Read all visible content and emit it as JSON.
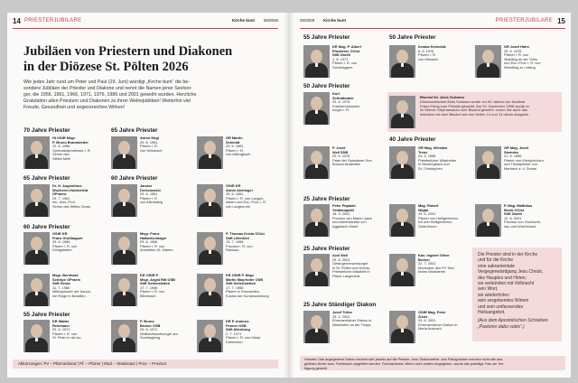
{
  "left": {
    "page_number": "14",
    "section": "PRIESTERJUBILARE",
    "paper": "Kirche bunt",
    "date": "26/2026",
    "headline_1": "Jubiläen von Priestern und Diakonen",
    "headline_2": "in der Diözese St. Pölten 2026",
    "lead_1": "Wie jedes Jahr rund um Peter und Paul (29. Juni) würdigt „Kirche bunt“ die be-",
    "lead_2": "sondere Jubiläen der Priester und Diakone und nennt die Namen jener Seelsor-",
    "lead_3": "ger, die 1956, 1961, 1966, 1971, 1976, 1986 und 2001 geweiht wurden. Herzliche",
    "lead_4": "Gratulation allen Priestern und Diakonen zu ihren Weihejubiläen! Weiterhin viel",
    "lead_5": "Freude, Gesundheit und segensreiches Wirken!",
    "abbreviations": "Abkürzungen: PV – Pfarrverband | Pf. – Pfarrer | Mod. – Moderator | Prov. – Provisor",
    "groups": {
      "g70": "70 Jahre Priester",
      "g65a": "65 Jahre Priester",
      "g65b": "65 Jahre Priester",
      "g60a": "60 Jahre Priester",
      "g60b": "60 Jahre Priester",
      "g55": "55 Jahre Priester"
    },
    "cards": {
      "c1": {
        "name": "Hl OStR Msgr.",
        "l2": "P. Bruno Brandstetter",
        "l3": "12. 6. 1956",
        "l4": "Gymnasialprofessor i. R.",
        "l5": "Senior des",
        "l6": "Stiftes Melk"
      },
      "c2": {
        "name": "Anton Högl",
        "l2": "29. 6. 1961",
        "l3": "Pfarrer i. R.",
        "l4": "von Weistrach",
        "l5": "",
        "l6": ""
      },
      "c3": {
        "name": "GR Martin",
        "l2": "Schmidt",
        "l3": "29. 6. 1961",
        "l4": "Pfarrer i. R.",
        "l5": "von Altlengbach",
        "l6": ""
      },
      "c4": {
        "name": "Dr. H. Augustinus",
        "l2": "Wucherer-Huldenfeld",
        "l3": "OPraem.",
        "l4": "29. 7. 1961",
        "l5": "em. Univ.-Prof.,",
        "l6": "Senior des Stiftes Geras"
      },
      "c5": {
        "name": "Janusz",
        "l2": "Dreściowski",
        "l3": "29. 6. 1961",
        "l4": "Pfarrer i. R.",
        "l5": "von Allentsteig",
        "l6": ""
      },
      "c6": {
        "name": "OStR KR",
        "l2": "Anton Aichinger",
        "l3": "29. 6. 1961",
        "l4": "Pfarrer i. R. von Langen-",
        "l5": "lebarn und Exc.-Prov. i. R.",
        "l6": "von Langenrohr"
      },
      "c7": {
        "name": "OStR KR",
        "l2": "Franz Großbaguer",
        "l3": "29. 6. 1966",
        "l4": "Pfarrer i. R. von",
        "l5": "Königstetten",
        "l6": ""
      },
      "c8": {
        "name": "Msgr. Franz",
        "l2": "Halbartschlager",
        "l3": "29. 6. 1966",
        "l4": "Pfarrer i. R. von",
        "l5": "Amstetten-St. Marien",
        "l6": ""
      },
      "c9": {
        "name": "P. Thomas Kriola OCist",
        "l2": "Stift Lilienfeld",
        "l3": "13. 7. 1966",
        "l4": "Provisor i. R. von",
        "l5": "Ramsau",
        "l6": ""
      },
      "c10": {
        "name": "Msgr. Bernhard",
        "l2": "Schelpe OPraem",
        "l3": "Stift Geras",
        "l4": "11. 7. 1966",
        "l5": "Mitbegründer der Kanon-",
        "l6": "nie Ringe in Brasilien."
      },
      "c11": {
        "name": "KR OStR P.",
        "l2": "Msgr. Aegid Ritt OSB",
        "l3": "Stift Seitenstetten",
        "l4": "17. 7. 1966",
        "l5": "Pfarrer i. R. von",
        "l6": "Biberbach"
      },
      "c12": {
        "name": "KR OStR P. Msgr.",
        "l2": "Martin Mayrhofer OSB",
        "l3": "Stift Seitenstetten",
        "l4": "17. 7. 1966",
        "l5": "Pfarrer in Krenstetten,",
        "l6": "Kustos der Kunstsammlung"
      },
      "c13": {
        "name": "KR Walter",
        "l2": "Reinmann",
        "l3": "29. 6. 1971",
        "l4": "Pfarrer i. R. von",
        "l5": "St. Peter in der Au",
        "l6": ""
      },
      "c14": {
        "name": "P. Bruno",
        "l2": "Becker OSB",
        "l3": "29. 6. 1971",
        "l4": "Wallfahrtsseelsorger am",
        "l5": "Sonntagberg",
        "l6": ""
      },
      "c15": {
        "name": "KR P. Ambros",
        "l2": "Penner OSB",
        "l3": "Stift Altenburg",
        "l4": "2. 7. 1971",
        "l5": "Pfarrer i. R. von Maria",
        "l6": "Dreieichen"
      }
    }
  },
  "right": {
    "page_number": "15",
    "section": "PRIESTERJUBILARE",
    "paper": "Kirche bunt",
    "date": "26/2026",
    "groups": {
      "r55": "55 Jahre Priester",
      "r50a": "50 Jahre Priester",
      "r50b": "50 Jahre Priester",
      "r40": "40 Jahre Priester",
      "r25a": "25 Jahre Priester",
      "r25b": "25 Jahre Priester",
      "r25c": "25 Jahre Ständiger Diakon"
    },
    "cards": {
      "d1": {
        "name": "KR Msg. P. Albert",
        "l2": "Filzwieser OCist",
        "l3": "Stift Zwettl",
        "l4": "1. 8. 1971",
        "l5": "Pfarrer i. R. von",
        "l6": "Schweiggers"
      },
      "d2": {
        "name": "Innoka Kmieciak",
        "l2": "8. 5. 1976",
        "l3": "Pfarrer i. R.",
        "l4": "von Messern",
        "l5": "",
        "l6": ""
      },
      "d3": {
        "name": "GR Josef Hahn",
        "l2": "29. 6. 1976",
        "l3": "Pfarrer i. R. von",
        "l4": "Waidling an der Ybbs",
        "l5": "und Exc.-Prov. i. R. von",
        "l6": "Wendling zu Leising"
      },
      "d4": {
        "name": "Kurt",
        "l2": "Schrattmaier",
        "l3": "29. 6. 1976",
        "l4": "Krankenhausseel-",
        "l5": "sorger i. R.",
        "l6": ""
      },
      "d5": {
        "name": "P. Josef",
        "l2": "Weil SDB",
        "l3": "29. 6. 1976",
        "l4": "Pater der Salesianer Don",
        "l5": "Boscos Amstetten",
        "l6": ""
      },
      "d6": {
        "name": "GR Mag. Wieslaw",
        "l2": "Trenz",
        "l3": "24. 5. 1986",
        "l4": "Priesterlicher Mitarbeiter",
        "l5": "in Neulengbach und",
        "l6": "St. Christophen"
      },
      "d7": {
        "name": "GR Mag. Josef",
        "l2": "Stemdes",
        "l3": "21. 6. 1986",
        "l4": "Pfarrer von Kleinpöchlarn",
        "l5": "und Titularpfarrer von",
        "l6": "Marbach a. d. Donau"
      },
      "d8": {
        "name": "Peter Papaiah",
        "l2": "Yeddanapalli",
        "l3": "18. 3. 2001",
        "l4": "Provisor von Maria Laach",
        "l5": "und Administrator von",
        "l6": "Aggsbach Markt"
      },
      "d9": {
        "name": "Mag. Robert",
        "l2": "Wajda",
        "l3": "19. 6. 2001",
        "l4": "Pfarrer von Heiligenkreuz-",
        "l5": "ich und Heiligenkreuz-",
        "l6": "Gutenbrunn"
      },
      "d10": {
        "name": "P. Mag. Matthäus",
        "l2": "Benik OCist",
        "l3": "Stift Zwettl",
        "l4": "12. 8. 2001",
        "l5": "Provisor von Großschö-",
        "l6": "nau und Wurmbrand"
      },
      "d11": {
        "name": "Axel Weil",
        "l2": "29. 6. 2001",
        "l3": "Gefangenenseelsorger",
        "l4": "in St. Pölten und Krems,",
        "l5": "Priesterliche Mitarbeit in",
        "l6": "Pfarre Langenlois"
      },
      "d12": {
        "name": "Kan. Ingbert Oliver",
        "l2": "Becker",
        "l3": "22. 7. 2001",
        "l4": "Moderator des PV Süd-",
        "l5": "liches Waldviertel",
        "l6": ""
      },
      "d13": {
        "name": "Josef Tröbs",
        "l2": "25. 3. 2001",
        "l3": "Ehrenamtlicher Diakon in",
        "l4": "Waidhofen an der Thaya",
        "l5": "",
        "l6": ""
      },
      "d14": {
        "name": "OStR Mag. Peter",
        "l2": "Zisler",
        "l3": "29. 6. 2001",
        "l4": "Ehrenamtlicher Diakon in",
        "l5": "Maria Anzbach",
        "l6": ""
      }
    },
    "bishop_title": "Bischof Dr. Alois Schwarz",
    "bishop_l1": "Diözesanbischof Alois Schwarz wurde vor 50 Jahren von Kardinal",
    "bishop_l2": "Franz König zum Priester geweiht. Am 29. Dezember 1996 wurde er",
    "bishop_l3": "im Wiener Stephansdom zum Bischof geweiht. Lesen Sie auch das",
    "bishop_l4": "Interview mit dem Bischof auf den Seiten 12 und 13 dieser Ausgabe.",
    "quote_1": "Die Priester sind in der Kirche",
    "quote_2": "und für die Kirche",
    "quote_3": "eine sakramentale",
    "quote_4": "Vergegenwärtigung Jesu Christi,",
    "quote_5": "des Hauptes und Hirten;",
    "quote_6": "sie verkünden mit Vollmacht",
    "quote_7": "sein Wort,",
    "quote_8": "sie wiederholen",
    "quote_9": "sein vergebendes Wirken",
    "quote_10": "und sein umfassendes",
    "quote_11": "Heilsangebot.",
    "quote_src_1": "(Aus dem Apostolischen Schreiben",
    "quote_src_2": "„Pastores dabo vobis“.)",
    "note_1": "Hinweis: Das angegebene Datum bezieht sich jeweils auf die Priester- bzw. Diakonweihe. Aus Platzgründen konnten nicht alle aus-",
    "note_2": "geübten Ämter bzw. Funktionen angeführt werden. Fotonachweis: Wenn nicht anders angegeben, wurde das jeweilige Foto zur Ver-",
    "note_3": "fügung gestellt.",
    "photo_credit": "Foto: privat"
  }
}
